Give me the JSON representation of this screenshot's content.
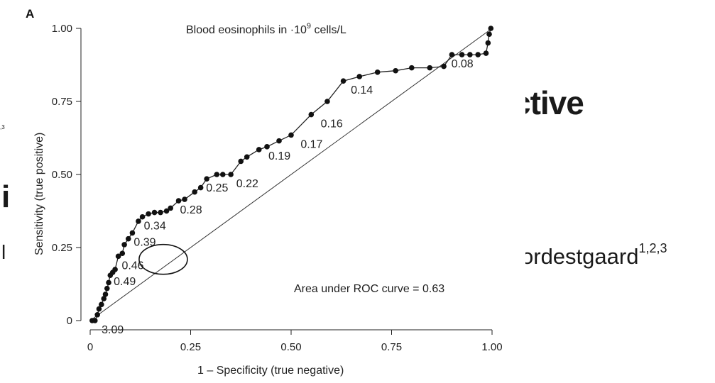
{
  "background": {
    "heading": "ctive",
    "author": "ordestgaard",
    "author_sup": "1,2,3",
    "left_1": "i",
    "left_2": "l",
    "left_sup": ",3"
  },
  "chart_data": {
    "type": "line",
    "panel_label": "A",
    "title": "Blood eosinophils in ·10",
    "title_sup": "9",
    "title_suffix": " cells/L",
    "xlabel": "1 – Specificity (true negative)",
    "ylabel": "Sensitivity (true positive)",
    "xlim": [
      0,
      1
    ],
    "ylim": [
      0,
      1
    ],
    "xticks": [
      0,
      0.25,
      0.5,
      0.75,
      1.0
    ],
    "xtick_labels": [
      "0",
      "0.25",
      "0.50",
      "0.75",
      "1.00"
    ],
    "yticks": [
      0,
      0.25,
      0.5,
      0.75,
      1.0
    ],
    "ytick_labels": [
      "0",
      "0.25",
      "0.50",
      "0.75",
      "1.00"
    ],
    "auc_text": "Area under ROC curve = 0.63",
    "reference_line": [
      [
        0,
        0
      ],
      [
        1,
        1
      ]
    ],
    "series": [
      {
        "points": [
          [
            0.005,
            0.0
          ],
          [
            0.012,
            0.0
          ],
          [
            0.018,
            0.02
          ],
          [
            0.022,
            0.04
          ],
          [
            0.028,
            0.055
          ],
          [
            0.034,
            0.075
          ],
          [
            0.038,
            0.09
          ],
          [
            0.042,
            0.11
          ],
          [
            0.046,
            0.13
          ],
          [
            0.05,
            0.155
          ],
          [
            0.056,
            0.165
          ],
          [
            0.062,
            0.175
          ],
          [
            0.07,
            0.22
          ],
          [
            0.08,
            0.23
          ],
          [
            0.085,
            0.26
          ],
          [
            0.095,
            0.28
          ],
          [
            0.105,
            0.3
          ],
          [
            0.12,
            0.34
          ],
          [
            0.13,
            0.355
          ],
          [
            0.145,
            0.365
          ],
          [
            0.16,
            0.37
          ],
          [
            0.175,
            0.37
          ],
          [
            0.19,
            0.375
          ],
          [
            0.2,
            0.385
          ],
          [
            0.22,
            0.41
          ],
          [
            0.235,
            0.415
          ],
          [
            0.26,
            0.44
          ],
          [
            0.275,
            0.455
          ],
          [
            0.29,
            0.485
          ],
          [
            0.315,
            0.5
          ],
          [
            0.33,
            0.5
          ],
          [
            0.35,
            0.5
          ],
          [
            0.375,
            0.545
          ],
          [
            0.39,
            0.56
          ],
          [
            0.42,
            0.585
          ],
          [
            0.44,
            0.595
          ],
          [
            0.47,
            0.615
          ],
          [
            0.5,
            0.635
          ],
          [
            0.55,
            0.705
          ],
          [
            0.59,
            0.75
          ],
          [
            0.63,
            0.82
          ],
          [
            0.67,
            0.835
          ],
          [
            0.715,
            0.85
          ],
          [
            0.76,
            0.855
          ],
          [
            0.8,
            0.865
          ],
          [
            0.845,
            0.865
          ],
          [
            0.88,
            0.87
          ],
          [
            0.9,
            0.91
          ],
          [
            0.925,
            0.91
          ],
          [
            0.945,
            0.91
          ],
          [
            0.965,
            0.91
          ],
          [
            0.985,
            0.915
          ],
          [
            0.99,
            0.95
          ],
          [
            0.993,
            0.98
          ],
          [
            0.997,
            1.0
          ]
        ]
      }
    ],
    "annotations": [
      {
        "text": "3.09",
        "x": 0.025,
        "y": -0.02
      },
      {
        "text": "0.49",
        "x": 0.055,
        "y": 0.16
      },
      {
        "text": "0.46",
        "x": 0.075,
        "y": 0.255
      },
      {
        "text": "0.39",
        "x": 0.105,
        "y": 0.49
      },
      {
        "text": "0.34",
        "x": 0.13,
        "y": 0.66
      },
      {
        "text": "0.28",
        "x": 0.22,
        "y": 0.69
      },
      {
        "text": "0.25",
        "x": 0.285,
        "y": 0.79
      },
      {
        "text": "0.22",
        "x": 0.36,
        "y": 0.88
      },
      {
        "text": "0.19",
        "x": 0.44,
        "y": 1.07
      },
      {
        "text": "0.17",
        "x": 0.52,
        "y": 1.135
      },
      {
        "text": "0.16",
        "x": 0.57,
        "y": 1.245
      },
      {
        "text": "0.14",
        "x": 0.645,
        "y": 1.455
      },
      {
        "text": "0.08",
        "x": 0.895,
        "y": 1.61
      }
    ],
    "highlight": {
      "label": "0.34",
      "cx": 0.173,
      "cy": 0.508
    }
  }
}
